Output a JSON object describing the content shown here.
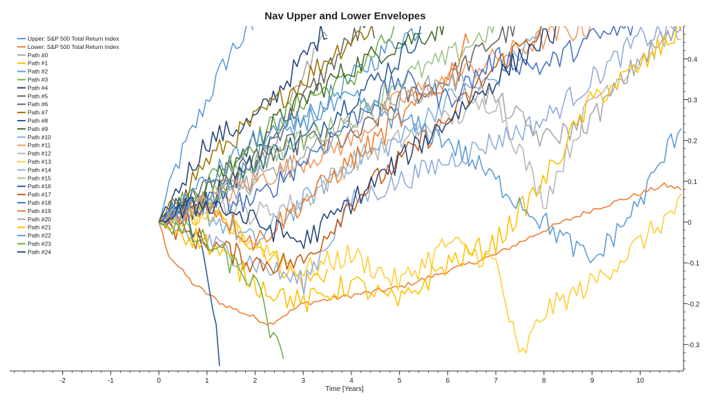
{
  "chart_data": {
    "type": "line",
    "title": "Nav Upper and Lower Envelopes",
    "xlabel": "Time [Years]",
    "ylabel": "",
    "xlim": [
      -3.1,
      10.9
    ],
    "ylim": [
      -0.365,
      0.48
    ],
    "x_ticks": [
      -2,
      -1,
      0,
      1,
      2,
      3,
      4,
      5,
      6,
      7,
      8,
      9,
      10
    ],
    "y_ticks": [
      -0.3,
      -0.2,
      -0.1,
      0,
      0.1,
      0.2,
      0.3,
      0.4
    ],
    "legend_position": "top-left",
    "grid": false,
    "series": [
      {
        "name": "Upper: S&P 500 Total Return Index",
        "color": "#5b9bd5",
        "anchors": [
          [
            0,
            0
          ],
          [
            0.3,
            0.12
          ],
          [
            1,
            0.3
          ],
          [
            1.5,
            0.42
          ],
          [
            2,
            0.48
          ]
        ]
      },
      {
        "name": "Lower: S&P 500 Total Return Index",
        "color": "#ed7d31",
        "anchors": [
          [
            0,
            0
          ],
          [
            0.2,
            -0.08
          ],
          [
            0.7,
            -0.15
          ],
          [
            1.3,
            -0.2
          ],
          [
            2.3,
            -0.25
          ],
          [
            3,
            -0.2
          ],
          [
            4,
            -0.18
          ],
          [
            5,
            -0.16
          ],
          [
            6,
            -0.12
          ],
          [
            7,
            -0.08
          ],
          [
            8,
            -0.02
          ],
          [
            9,
            0.03
          ],
          [
            10,
            0.07
          ],
          [
            10.5,
            0.09
          ],
          [
            10.9,
            0.08
          ]
        ]
      },
      {
        "name": "Path #0",
        "color": "#a5a5a5",
        "anchors": [
          [
            0,
            0
          ],
          [
            1,
            0.05
          ],
          [
            2,
            0.1
          ],
          [
            3,
            0.35
          ],
          [
            3.5,
            0.48
          ]
        ]
      },
      {
        "name": "Path #1",
        "color": "#ffc000",
        "anchors": [
          [
            0,
            0
          ],
          [
            1,
            0.02
          ],
          [
            2,
            -0.05
          ],
          [
            3,
            -0.15
          ],
          [
            3.5,
            -0.12
          ]
        ]
      },
      {
        "name": "Path #2",
        "color": "#5b9bd5",
        "anchors": [
          [
            0,
            0
          ],
          [
            1,
            0.05
          ],
          [
            2,
            0.15
          ],
          [
            3,
            0.25
          ],
          [
            4,
            0.35
          ],
          [
            5,
            0.45
          ],
          [
            5.5,
            0.48
          ]
        ]
      },
      {
        "name": "Path #3",
        "color": "#70ad47",
        "anchors": [
          [
            0,
            0
          ],
          [
            1,
            0.1
          ],
          [
            2,
            0.2
          ],
          [
            3,
            0.3
          ],
          [
            4,
            0.35
          ],
          [
            5,
            0.48
          ]
        ]
      },
      {
        "name": "Path #4",
        "color": "#264478",
        "anchors": [
          [
            0,
            0
          ],
          [
            1,
            0.2
          ],
          [
            2,
            0.25
          ],
          [
            3,
            0.4
          ],
          [
            3.5,
            0.48
          ]
        ]
      },
      {
        "name": "Path #5",
        "color": "#636363",
        "anchors": [
          [
            0,
            0
          ],
          [
            1,
            0.05
          ],
          [
            2,
            0.15
          ],
          [
            3,
            0.3
          ],
          [
            4,
            0.45
          ],
          [
            4.5,
            0.48
          ]
        ]
      },
      {
        "name": "Path #6",
        "color": "#636363",
        "anchors": [
          [
            0,
            0
          ],
          [
            1,
            0.1
          ],
          [
            2,
            0.15
          ],
          [
            3,
            0.2
          ],
          [
            4,
            0.2
          ],
          [
            5,
            0.3
          ],
          [
            6,
            0.35
          ],
          [
            7,
            0.45
          ],
          [
            7.5,
            0.48
          ]
        ]
      },
      {
        "name": "Path #7",
        "color": "#997300",
        "anchors": [
          [
            0,
            0
          ],
          [
            1,
            0.15
          ],
          [
            2,
            0.25
          ],
          [
            3,
            0.35
          ],
          [
            4,
            0.45
          ],
          [
            4.5,
            0.48
          ]
        ]
      },
      {
        "name": "Path #8",
        "color": "#255e91",
        "anchors": [
          [
            0,
            0
          ],
          [
            1,
            0.05
          ],
          [
            2,
            0.15
          ],
          [
            3,
            0.2
          ],
          [
            4,
            0.3
          ],
          [
            5,
            0.4
          ],
          [
            5.5,
            0.48
          ]
        ]
      },
      {
        "name": "Path #9",
        "color": "#43682b",
        "anchors": [
          [
            0,
            0
          ],
          [
            1,
            0.08
          ],
          [
            2,
            0.2
          ],
          [
            3,
            0.3
          ],
          [
            4,
            0.38
          ],
          [
            5,
            0.44
          ],
          [
            6,
            0.48
          ]
        ]
      },
      {
        "name": "Path #10",
        "color": "#7cafdd",
        "anchors": [
          [
            0,
            0
          ],
          [
            1,
            0.02
          ],
          [
            2,
            -0.05
          ],
          [
            3,
            0.05
          ],
          [
            4,
            0.15
          ],
          [
            5,
            0.2
          ],
          [
            6,
            0.3
          ],
          [
            7,
            0.35
          ],
          [
            8,
            0.48
          ]
        ]
      },
      {
        "name": "Path #11",
        "color": "#f1975a",
        "anchors": [
          [
            0,
            0
          ],
          [
            1,
            0.05
          ],
          [
            2,
            0.1
          ],
          [
            3,
            0.15
          ],
          [
            4,
            0.2
          ],
          [
            5,
            0.3
          ],
          [
            6,
            0.35
          ],
          [
            7,
            0.4
          ],
          [
            8,
            0.45
          ],
          [
            9,
            0.48
          ]
        ]
      },
      {
        "name": "Path #12",
        "color": "#b7b7b7",
        "anchors": [
          [
            0,
            0
          ],
          [
            1,
            0.05
          ],
          [
            2,
            0.02
          ],
          [
            3,
            0.05
          ],
          [
            4,
            0.15
          ],
          [
            5,
            0.2
          ],
          [
            6,
            0.25
          ],
          [
            7,
            0.3
          ],
          [
            8,
            0.05
          ],
          [
            9,
            0.3
          ],
          [
            10,
            0.4
          ],
          [
            10.9,
            0.48
          ]
        ]
      },
      {
        "name": "Path #13",
        "color": "#ffcd33",
        "anchors": [
          [
            0,
            0
          ],
          [
            1,
            0.02
          ],
          [
            2,
            -0.05
          ],
          [
            3,
            -0.12
          ],
          [
            4,
            -0.08
          ],
          [
            5,
            -0.15
          ],
          [
            6,
            -0.05
          ],
          [
            7,
            -0.1
          ],
          [
            7.5,
            -0.34
          ],
          [
            8,
            -0.22
          ],
          [
            9,
            -0.15
          ],
          [
            10,
            -0.05
          ],
          [
            10.9,
            0.05
          ]
        ]
      },
      {
        "name": "Path #14",
        "color": "#8faadc",
        "anchors": [
          [
            0,
            0
          ],
          [
            1,
            -0.05
          ],
          [
            2,
            -0.1
          ],
          [
            3,
            -0.15
          ],
          [
            4,
            0.05
          ],
          [
            5,
            0.1
          ],
          [
            6,
            0.15
          ],
          [
            7,
            0.2
          ],
          [
            8,
            0.25
          ],
          [
            9,
            0.35
          ],
          [
            10,
            0.45
          ],
          [
            10.9,
            0.48
          ]
        ]
      },
      {
        "name": "Path #15",
        "color": "#9dc384",
        "anchors": [
          [
            0,
            0
          ],
          [
            1,
            0.05
          ],
          [
            2,
            0.15
          ],
          [
            3,
            0.2
          ],
          [
            4,
            0.25
          ],
          [
            5,
            0.35
          ],
          [
            6,
            0.4
          ],
          [
            7,
            0.48
          ]
        ]
      },
      {
        "name": "Path #16",
        "color": "#2f5597",
        "anchors": [
          [
            0,
            0
          ],
          [
            0.5,
            0.05
          ],
          [
            1,
            -0.1
          ],
          [
            1.3,
            -0.36
          ]
        ]
      },
      {
        "name": "Path #17",
        "color": "#c55a11",
        "anchors": [
          [
            0,
            0
          ],
          [
            1,
            -0.05
          ],
          [
            2,
            -0.1
          ],
          [
            3,
            -0.1
          ],
          [
            4,
            0.05
          ],
          [
            5,
            0.15
          ],
          [
            6,
            0.25
          ],
          [
            7,
            0.38
          ],
          [
            8,
            0.48
          ]
        ]
      },
      {
        "name": "Path #18",
        "color": "#4472c4",
        "anchors": [
          [
            0,
            0
          ],
          [
            1,
            0.05
          ],
          [
            2,
            0.05
          ],
          [
            3,
            0.15
          ],
          [
            4,
            0.25
          ],
          [
            5,
            0.35
          ],
          [
            6,
            0.3
          ],
          [
            7,
            0.4
          ],
          [
            8,
            0.38
          ],
          [
            9,
            0.45
          ],
          [
            10,
            0.48
          ]
        ]
      },
      {
        "name": "Path #19",
        "color": "#ed7d31",
        "anchors": [
          [
            0,
            0
          ],
          [
            1,
            0.05
          ],
          [
            2,
            -0.05
          ],
          [
            3,
            0.05
          ],
          [
            4,
            0.15
          ],
          [
            5,
            0.25
          ],
          [
            6,
            0.35
          ],
          [
            6.5,
            0.48
          ]
        ]
      },
      {
        "name": "Path #20",
        "color": "#a5a5a5",
        "anchors": [
          [
            0,
            0
          ],
          [
            1,
            0.05
          ],
          [
            2,
            0.1
          ],
          [
            3,
            0.15
          ],
          [
            4,
            0.25
          ],
          [
            5,
            0.3
          ],
          [
            6,
            0.35
          ],
          [
            7,
            0.3
          ],
          [
            8,
            0.2
          ],
          [
            9,
            0.25
          ],
          [
            10,
            0.4
          ],
          [
            10.9,
            0.48
          ]
        ]
      },
      {
        "name": "Path #21",
        "color": "#ffc000",
        "anchors": [
          [
            0,
            0
          ],
          [
            1,
            -0.05
          ],
          [
            2,
            -0.15
          ],
          [
            3,
            -0.2
          ],
          [
            4,
            -0.15
          ],
          [
            5,
            -0.2
          ],
          [
            6,
            -0.1
          ],
          [
            7,
            -0.05
          ],
          [
            8,
            0.1
          ],
          [
            9,
            0.3
          ],
          [
            10,
            0.38
          ],
          [
            10.9,
            0.48
          ]
        ]
      },
      {
        "name": "Path #22",
        "color": "#5b9bd5",
        "anchors": [
          [
            0,
            0
          ],
          [
            1,
            0.1
          ],
          [
            2,
            0.2
          ],
          [
            3,
            0.25
          ],
          [
            4,
            0.3
          ],
          [
            5,
            0.25
          ],
          [
            6,
            0.2
          ],
          [
            7,
            0.1
          ],
          [
            8,
            0.0
          ],
          [
            9,
            -0.1
          ],
          [
            10,
            0.05
          ],
          [
            10.9,
            0.25
          ]
        ]
      },
      {
        "name": "Path #23",
        "color": "#70ad47",
        "anchors": [
          [
            0,
            0
          ],
          [
            1,
            -0.05
          ],
          [
            2,
            -0.15
          ],
          [
            2.6,
            -0.36
          ]
        ]
      },
      {
        "name": "Path #24",
        "color": "#264478",
        "anchors": [
          [
            0,
            0
          ],
          [
            1,
            0.05
          ],
          [
            2,
            0.0
          ],
          [
            3,
            -0.05
          ],
          [
            4,
            0.05
          ],
          [
            5,
            0.15
          ],
          [
            6,
            0.25
          ],
          [
            7,
            0.35
          ],
          [
            8,
            0.45
          ],
          [
            8.5,
            0.48
          ]
        ]
      }
    ]
  }
}
